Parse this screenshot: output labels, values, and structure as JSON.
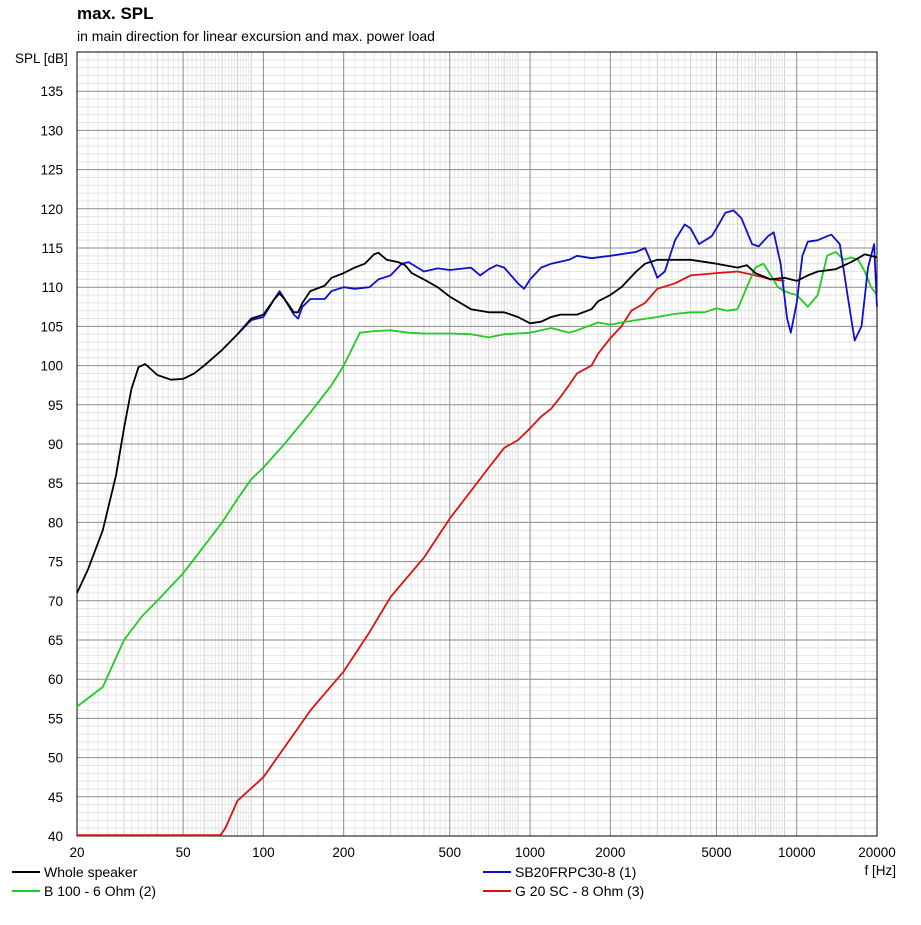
{
  "title": "max. SPL",
  "subtitle": "in main direction for linear excursion and max. power load",
  "chart_data": {
    "type": "line",
    "title": "max. SPL",
    "subtitle": "in main direction for linear excursion and max. power load",
    "ylabel": "SPL [dB]",
    "xlabel": "f [Hz]",
    "xscale": "log",
    "xlim": [
      20,
      20000
    ],
    "ylim": [
      40,
      140
    ],
    "x_ticks": [
      {
        "v": 20,
        "label": "20"
      },
      {
        "v": 50,
        "label": "50"
      },
      {
        "v": 100,
        "label": "100"
      },
      {
        "v": 200,
        "label": "200"
      },
      {
        "v": 500,
        "label": "500"
      },
      {
        "v": 1000,
        "label": "1000"
      },
      {
        "v": 2000,
        "label": "2000"
      },
      {
        "v": 5000,
        "label": "5000"
      },
      {
        "v": 10000,
        "label": "10000"
      },
      {
        "v": 20000,
        "label": "20000"
      }
    ],
    "y_ticks": [
      40,
      45,
      50,
      55,
      60,
      65,
      70,
      75,
      80,
      85,
      90,
      95,
      100,
      105,
      110,
      115,
      120,
      125,
      130,
      135
    ],
    "grid": true,
    "legend_position": "bottom",
    "series": [
      {
        "name": "Whole speaker",
        "color": "#000000",
        "points": [
          [
            20,
            71
          ],
          [
            22,
            74
          ],
          [
            25,
            79
          ],
          [
            28,
            86
          ],
          [
            30,
            92
          ],
          [
            32,
            97
          ],
          [
            34,
            99.8
          ],
          [
            36,
            100.2
          ],
          [
            38,
            99.5
          ],
          [
            40,
            98.8
          ],
          [
            45,
            98.2
          ],
          [
            50,
            98.3
          ],
          [
            55,
            99
          ],
          [
            60,
            100
          ],
          [
            70,
            102
          ],
          [
            80,
            104
          ],
          [
            90,
            106
          ],
          [
            100,
            106.5
          ],
          [
            110,
            108.5
          ],
          [
            115,
            109.2
          ],
          [
            120,
            108.5
          ],
          [
            130,
            106.8
          ],
          [
            135,
            106.8
          ],
          [
            140,
            108
          ],
          [
            150,
            109.5
          ],
          [
            170,
            110.2
          ],
          [
            180,
            111.2
          ],
          [
            200,
            111.8
          ],
          [
            220,
            112.5
          ],
          [
            240,
            113
          ],
          [
            260,
            114.2
          ],
          [
            270,
            114.4
          ],
          [
            290,
            113.5
          ],
          [
            320,
            113.2
          ],
          [
            340,
            112.8
          ],
          [
            360,
            111.8
          ],
          [
            400,
            111
          ],
          [
            450,
            110
          ],
          [
            500,
            108.8
          ],
          [
            600,
            107.2
          ],
          [
            700,
            106.8
          ],
          [
            800,
            106.8
          ],
          [
            900,
            106.2
          ],
          [
            1000,
            105.4
          ],
          [
            1100,
            105.6
          ],
          [
            1200,
            106.2
          ],
          [
            1300,
            106.5
          ],
          [
            1500,
            106.5
          ],
          [
            1700,
            107.2
          ],
          [
            1800,
            108.2
          ],
          [
            2000,
            109
          ],
          [
            2200,
            110
          ],
          [
            2500,
            112
          ],
          [
            2700,
            113
          ],
          [
            3000,
            113.5
          ],
          [
            3500,
            113.5
          ],
          [
            4000,
            113.5
          ],
          [
            5000,
            113
          ],
          [
            6000,
            112.5
          ],
          [
            6500,
            112.8
          ],
          [
            7000,
            111.8
          ],
          [
            8000,
            111
          ],
          [
            9000,
            111.2
          ],
          [
            10000,
            110.8
          ],
          [
            11000,
            111.5
          ],
          [
            12000,
            112
          ],
          [
            14000,
            112.3
          ],
          [
            16000,
            113.2
          ],
          [
            18000,
            114.2
          ],
          [
            20000,
            113.8
          ]
        ]
      },
      {
        "name": "SB20FRPC30-8 (1)",
        "color": "#1010cc",
        "points": [
          [
            80,
            104
          ],
          [
            90,
            105.8
          ],
          [
            100,
            106.2
          ],
          [
            110,
            108.5
          ],
          [
            115,
            109.5
          ],
          [
            120,
            108.5
          ],
          [
            130,
            106.5
          ],
          [
            135,
            106
          ],
          [
            140,
            107.5
          ],
          [
            150,
            108.5
          ],
          [
            170,
            108.5
          ],
          [
            180,
            109.5
          ],
          [
            200,
            110
          ],
          [
            220,
            109.8
          ],
          [
            250,
            110
          ],
          [
            270,
            111
          ],
          [
            300,
            111.5
          ],
          [
            330,
            113
          ],
          [
            350,
            113.2
          ],
          [
            400,
            112
          ],
          [
            450,
            112.4
          ],
          [
            500,
            112.2
          ],
          [
            600,
            112.5
          ],
          [
            650,
            111.5
          ],
          [
            700,
            112.3
          ],
          [
            750,
            112.8
          ],
          [
            800,
            112.5
          ],
          [
            900,
            110.5
          ],
          [
            950,
            109.8
          ],
          [
            1000,
            111
          ],
          [
            1100,
            112.5
          ],
          [
            1200,
            113
          ],
          [
            1400,
            113.5
          ],
          [
            1500,
            114
          ],
          [
            1700,
            113.7
          ],
          [
            2000,
            114
          ],
          [
            2500,
            114.5
          ],
          [
            2700,
            115
          ],
          [
            2900,
            112.5
          ],
          [
            3000,
            111.2
          ],
          [
            3200,
            112
          ],
          [
            3500,
            116
          ],
          [
            3800,
            118
          ],
          [
            4000,
            117.5
          ],
          [
            4300,
            115.5
          ],
          [
            4800,
            116.5
          ],
          [
            5000,
            117.5
          ],
          [
            5400,
            119.5
          ],
          [
            5800,
            119.8
          ],
          [
            6200,
            118.8
          ],
          [
            6800,
            115.5
          ],
          [
            7200,
            115.2
          ],
          [
            7800,
            116.5
          ],
          [
            8200,
            117
          ],
          [
            8700,
            113
          ],
          [
            9200,
            106
          ],
          [
            9500,
            104.2
          ],
          [
            10000,
            108
          ],
          [
            10500,
            114
          ],
          [
            11000,
            115.8
          ],
          [
            12000,
            116
          ],
          [
            13000,
            116.5
          ],
          [
            13500,
            116.7
          ],
          [
            14500,
            115.5
          ],
          [
            15500,
            109
          ],
          [
            16500,
            103.2
          ],
          [
            17500,
            105
          ],
          [
            18500,
            112.5
          ],
          [
            19500,
            115.5
          ],
          [
            20000,
            107.5
          ]
        ]
      },
      {
        "name": "B 100 - 6 Ohm (2)",
        "color": "#22cc22",
        "points": [
          [
            20,
            56.5
          ],
          [
            25,
            59
          ],
          [
            30,
            65
          ],
          [
            35,
            68
          ],
          [
            40,
            70
          ],
          [
            50,
            73.5
          ],
          [
            60,
            77
          ],
          [
            70,
            80
          ],
          [
            80,
            83
          ],
          [
            90,
            85.5
          ],
          [
            100,
            87
          ],
          [
            120,
            90
          ],
          [
            150,
            94
          ],
          [
            180,
            97.5
          ],
          [
            200,
            100
          ],
          [
            230,
            104.2
          ],
          [
            260,
            104.4
          ],
          [
            300,
            104.5
          ],
          [
            350,
            104.2
          ],
          [
            400,
            104.1
          ],
          [
            500,
            104.1
          ],
          [
            600,
            104
          ],
          [
            700,
            103.6
          ],
          [
            800,
            104
          ],
          [
            900,
            104.1
          ],
          [
            1000,
            104.2
          ],
          [
            1200,
            104.8
          ],
          [
            1400,
            104.2
          ],
          [
            1500,
            104.5
          ],
          [
            1800,
            105.5
          ],
          [
            2000,
            105.2
          ],
          [
            2200,
            105.5
          ],
          [
            2500,
            105.8
          ],
          [
            3000,
            106.2
          ],
          [
            3500,
            106.6
          ],
          [
            4000,
            106.8
          ],
          [
            4500,
            106.8
          ],
          [
            5000,
            107.3
          ],
          [
            5500,
            107
          ],
          [
            6000,
            107.2
          ],
          [
            6500,
            110
          ],
          [
            7000,
            112.5
          ],
          [
            7500,
            113
          ],
          [
            8000,
            111.5
          ],
          [
            8500,
            110
          ],
          [
            9000,
            109.5
          ],
          [
            9500,
            109.2
          ],
          [
            10000,
            109
          ],
          [
            11000,
            107.5
          ],
          [
            12000,
            109
          ],
          [
            13000,
            114
          ],
          [
            14000,
            114.5
          ],
          [
            15000,
            113.5
          ],
          [
            16000,
            113.8
          ],
          [
            17000,
            113.5
          ],
          [
            18000,
            112
          ],
          [
            19000,
            110
          ],
          [
            20000,
            109
          ]
        ]
      },
      {
        "name": "G 20 SC - 8 Ohm (3)",
        "color": "#dd1111",
        "points": [
          [
            20,
            40.1
          ],
          [
            40,
            40.1
          ],
          [
            69,
            40.1
          ],
          [
            72,
            41
          ],
          [
            80,
            44.5
          ],
          [
            100,
            47.5
          ],
          [
            130,
            53
          ],
          [
            150,
            56
          ],
          [
            200,
            61
          ],
          [
            250,
            66
          ],
          [
            300,
            70.5
          ],
          [
            400,
            75.5
          ],
          [
            500,
            80.5
          ],
          [
            600,
            84
          ],
          [
            700,
            87
          ],
          [
            800,
            89.5
          ],
          [
            900,
            90.5
          ],
          [
            1000,
            92
          ],
          [
            1100,
            93.5
          ],
          [
            1200,
            94.5
          ],
          [
            1300,
            96
          ],
          [
            1400,
            97.5
          ],
          [
            1500,
            99
          ],
          [
            1700,
            100
          ],
          [
            1800,
            101.5
          ],
          [
            2000,
            103.5
          ],
          [
            2200,
            105
          ],
          [
            2400,
            107
          ],
          [
            2700,
            108
          ],
          [
            3000,
            109.8
          ],
          [
            3500,
            110.5
          ],
          [
            4000,
            111.5
          ],
          [
            5000,
            111.8
          ],
          [
            6000,
            112
          ],
          [
            7000,
            111.5
          ],
          [
            8000,
            111
          ],
          [
            9000,
            110.8
          ]
        ]
      }
    ]
  }
}
